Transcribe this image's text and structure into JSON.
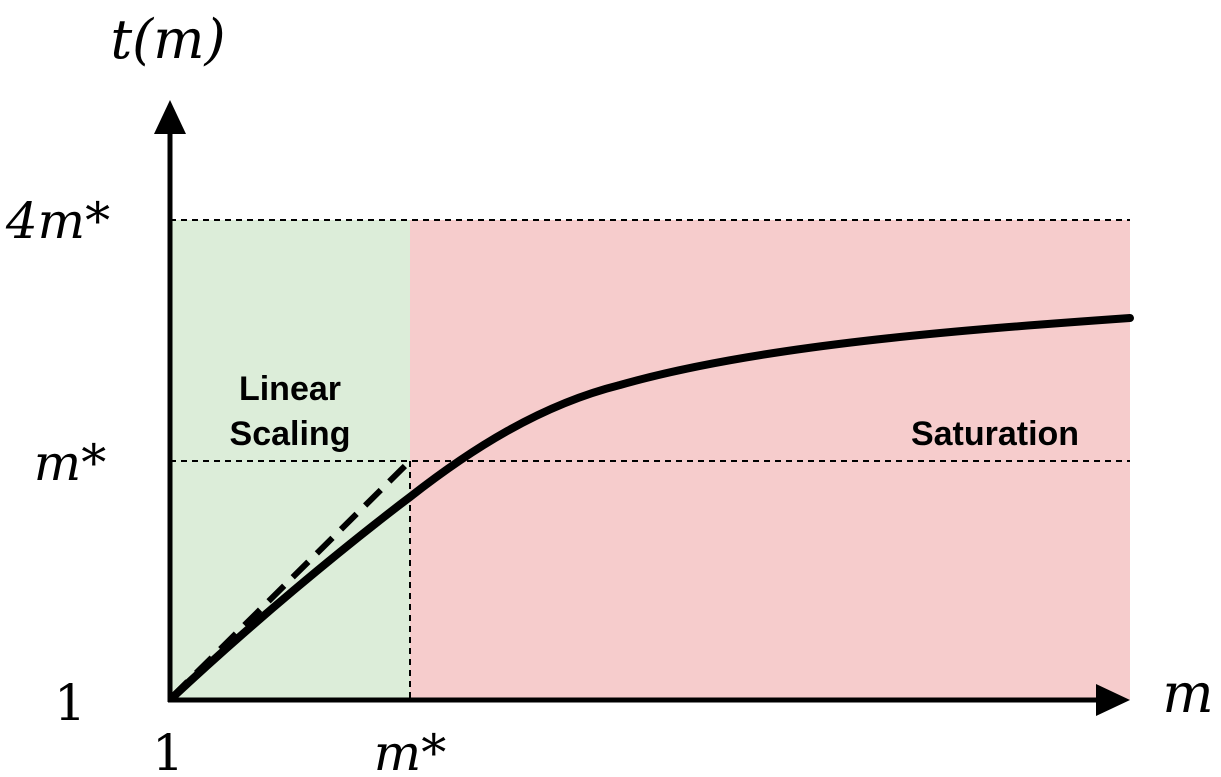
{
  "axes": {
    "y_label": "t(m)",
    "x_label": "m"
  },
  "ticks": {
    "y_top": "4m*",
    "y_mid": "m*",
    "y_origin": "1",
    "x_origin": "1",
    "x_mid": "m*"
  },
  "regions": {
    "linear": {
      "line1": "Linear",
      "line2": "Scaling",
      "color": "#dcedd9"
    },
    "saturation": {
      "label": "Saturation",
      "color": "#f6cccc"
    }
  }
}
